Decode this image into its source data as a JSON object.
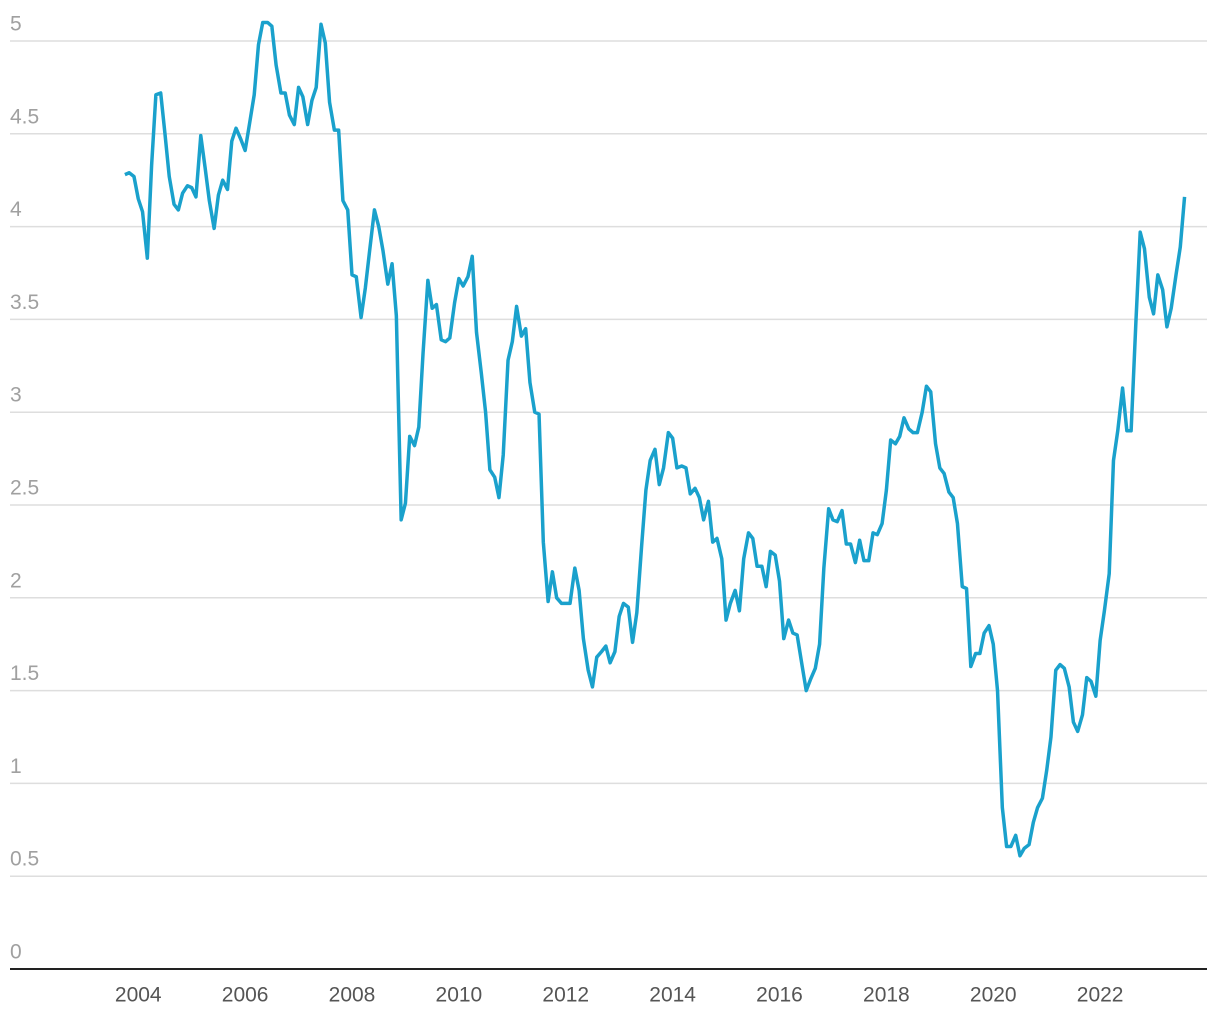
{
  "chart_data": {
    "type": "line",
    "x": [
      2003.75,
      2003.83,
      2003.92,
      2004.0,
      2004.08,
      2004.17,
      2004.25,
      2004.33,
      2004.42,
      2004.5,
      2004.58,
      2004.67,
      2004.75,
      2004.83,
      2004.92,
      2005.0,
      2005.08,
      2005.17,
      2005.25,
      2005.33,
      2005.42,
      2005.5,
      2005.58,
      2005.67,
      2005.75,
      2005.83,
      2005.92,
      2006.0,
      2006.08,
      2006.17,
      2006.25,
      2006.33,
      2006.42,
      2006.5,
      2006.58,
      2006.67,
      2006.75,
      2006.83,
      2006.92,
      2007.0,
      2007.08,
      2007.17,
      2007.25,
      2007.33,
      2007.42,
      2007.5,
      2007.58,
      2007.67,
      2007.75,
      2007.83,
      2007.92,
      2008.0,
      2008.08,
      2008.17,
      2008.25,
      2008.33,
      2008.42,
      2008.5,
      2008.58,
      2008.67,
      2008.75,
      2008.83,
      2008.92,
      2009.0,
      2009.08,
      2009.17,
      2009.25,
      2009.33,
      2009.42,
      2009.5,
      2009.58,
      2009.67,
      2009.75,
      2009.83,
      2009.92,
      2010.0,
      2010.08,
      2010.17,
      2010.25,
      2010.33,
      2010.42,
      2010.5,
      2010.58,
      2010.67,
      2010.75,
      2010.83,
      2010.92,
      2011.0,
      2011.08,
      2011.17,
      2011.25,
      2011.33,
      2011.42,
      2011.5,
      2011.58,
      2011.67,
      2011.75,
      2011.83,
      2011.92,
      2012.0,
      2012.08,
      2012.17,
      2012.25,
      2012.33,
      2012.42,
      2012.5,
      2012.58,
      2012.67,
      2012.75,
      2012.83,
      2012.92,
      2013.0,
      2013.08,
      2013.17,
      2013.25,
      2013.33,
      2013.42,
      2013.5,
      2013.58,
      2013.67,
      2013.75,
      2013.83,
      2013.92,
      2014.0,
      2014.08,
      2014.17,
      2014.25,
      2014.33,
      2014.42,
      2014.5,
      2014.58,
      2014.67,
      2014.75,
      2014.83,
      2014.92,
      2015.0,
      2015.08,
      2015.17,
      2015.25,
      2015.33,
      2015.42,
      2015.5,
      2015.58,
      2015.67,
      2015.75,
      2015.83,
      2015.92,
      2016.0,
      2016.08,
      2016.17,
      2016.25,
      2016.33,
      2016.42,
      2016.5,
      2016.58,
      2016.67,
      2016.75,
      2016.83,
      2016.92,
      2017.0,
      2017.08,
      2017.17,
      2017.25,
      2017.33,
      2017.42,
      2017.5,
      2017.58,
      2017.67,
      2017.75,
      2017.83,
      2017.92,
      2018.0,
      2018.08,
      2018.17,
      2018.25,
      2018.33,
      2018.42,
      2018.5,
      2018.58,
      2018.67,
      2018.75,
      2018.83,
      2018.92,
      2019.0,
      2019.08,
      2019.17,
      2019.25,
      2019.33,
      2019.42,
      2019.5,
      2019.58,
      2019.67,
      2019.75,
      2019.83,
      2019.92,
      2020.0,
      2020.08,
      2020.17,
      2020.25,
      2020.33,
      2020.42,
      2020.5,
      2020.58,
      2020.67,
      2020.75,
      2020.83,
      2020.92,
      2021.0,
      2021.08,
      2021.17,
      2021.25,
      2021.33,
      2021.42,
      2021.5,
      2021.58,
      2021.67,
      2021.75,
      2021.83,
      2021.92,
      2022.0,
      2022.08,
      2022.17,
      2022.25,
      2022.33,
      2022.42,
      2022.5,
      2022.58,
      2022.67,
      2022.75,
      2022.83,
      2022.92,
      2023.0,
      2023.08,
      2023.17,
      2023.25,
      2023.33,
      2023.42,
      2023.5,
      2023.58
    ],
    "series": [
      {
        "color": "#1aa1cc",
        "values": [
          4.28,
          4.29,
          4.27,
          4.15,
          4.08,
          3.83,
          4.33,
          4.71,
          4.72,
          4.5,
          4.27,
          4.12,
          4.09,
          4.18,
          4.22,
          4.21,
          4.16,
          4.49,
          4.32,
          4.14,
          3.99,
          4.17,
          4.25,
          4.2,
          4.46,
          4.53,
          4.47,
          4.41,
          4.55,
          4.71,
          4.98,
          5.1,
          5.1,
          5.08,
          4.87,
          4.72,
          4.72,
          4.6,
          4.55,
          4.75,
          4.7,
          4.55,
          4.68,
          4.75,
          5.09,
          4.99,
          4.67,
          4.52,
          4.52,
          4.14,
          4.09,
          3.74,
          3.73,
          3.51,
          3.67,
          3.87,
          4.09,
          4.0,
          3.87,
          3.69,
          3.8,
          3.52,
          2.42,
          2.51,
          2.87,
          2.82,
          2.92,
          3.32,
          3.71,
          3.56,
          3.58,
          3.39,
          3.38,
          3.4,
          3.59,
          3.72,
          3.68,
          3.73,
          3.84,
          3.43,
          3.21,
          3.0,
          2.69,
          2.65,
          2.54,
          2.77,
          3.28,
          3.38,
          3.57,
          3.41,
          3.45,
          3.16,
          3.0,
          2.99,
          2.3,
          1.98,
          2.14,
          2.0,
          1.97,
          1.97,
          1.97,
          2.16,
          2.04,
          1.78,
          1.61,
          1.52,
          1.68,
          1.71,
          1.74,
          1.65,
          1.71,
          1.9,
          1.97,
          1.95,
          1.76,
          1.92,
          2.28,
          2.58,
          2.74,
          2.8,
          2.61,
          2.7,
          2.89,
          2.86,
          2.7,
          2.71,
          2.7,
          2.56,
          2.59,
          2.54,
          2.42,
          2.52,
          2.3,
          2.32,
          2.21,
          1.88,
          1.97,
          2.04,
          1.93,
          2.21,
          2.35,
          2.32,
          2.17,
          2.17,
          2.06,
          2.25,
          2.23,
          2.09,
          1.78,
          1.88,
          1.81,
          1.8,
          1.64,
          1.5,
          1.56,
          1.62,
          1.75,
          2.16,
          2.48,
          2.42,
          2.41,
          2.47,
          2.29,
          2.29,
          2.19,
          2.31,
          2.2,
          2.2,
          2.35,
          2.34,
          2.4,
          2.58,
          2.85,
          2.83,
          2.87,
          2.97,
          2.91,
          2.89,
          2.89,
          3.0,
          3.14,
          3.11,
          2.83,
          2.7,
          2.67,
          2.57,
          2.54,
          2.4,
          2.06,
          2.05,
          1.63,
          1.7,
          1.7,
          1.81,
          1.85,
          1.75,
          1.5,
          0.87,
          0.66,
          0.66,
          0.72,
          0.61,
          0.65,
          0.67,
          0.79,
          0.87,
          0.92,
          1.07,
          1.25,
          1.61,
          1.64,
          1.62,
          1.52,
          1.33,
          1.28,
          1.37,
          1.57,
          1.55,
          1.47,
          1.77,
          1.93,
          2.13,
          2.74,
          2.9,
          3.13,
          2.9,
          2.9,
          3.49,
          3.97,
          3.88,
          3.62,
          3.53,
          3.74,
          3.66,
          3.46,
          3.56,
          3.74,
          3.89,
          4.16
        ]
      }
    ],
    "xlim": [
      2001.6,
      2024
    ],
    "xticks": [
      2004,
      2006,
      2008,
      2010,
      2012,
      2014,
      2016,
      2018,
      2020,
      2022
    ],
    "ylim": [
      0,
      5
    ],
    "yticks": [
      0,
      0.5,
      1,
      1.5,
      2,
      2.5,
      3,
      3.5,
      4,
      4.5,
      5
    ],
    "grid": true
  }
}
